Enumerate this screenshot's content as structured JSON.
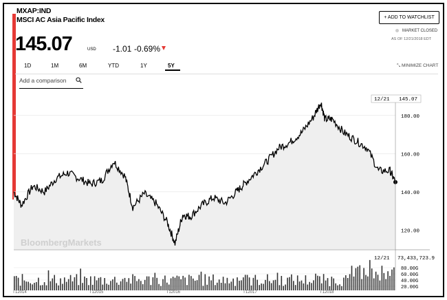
{
  "header": {
    "ticker": "MXAP:IND",
    "name": "MSCI AC Asia Pacific Index",
    "price": "145.07",
    "currency": "USD",
    "change": "-1.01",
    "change_pct": "-0.69%",
    "add_watchlist_label": "+ ADD TO WATCHLIST",
    "market_status": "MARKET CLOSED",
    "as_of": "AS OF 12/21/2018 EDT"
  },
  "tabs": [
    {
      "label": "1D"
    },
    {
      "label": "1M"
    },
    {
      "label": "6M"
    },
    {
      "label": "YTD"
    },
    {
      "label": "1Y"
    },
    {
      "label": "5Y",
      "active": true
    }
  ],
  "minimize_label": "MINIMIZE CHART",
  "comparison_placeholder": "Add a comparison",
  "watermark": "BloombergMarkets",
  "colors": {
    "accent_red": "#e53935",
    "line": "#000000",
    "area_fill": "#efefef"
  },
  "chart_data": {
    "type": "line",
    "price_panel": {
      "ylim": [
        110,
        190
      ],
      "y_ticks": [
        "180.00",
        "160.00",
        "140.00",
        "120.00"
      ],
      "last_label_date": "12/21",
      "last_label_value": "145.07",
      "x": [
        2014.0,
        2014.1,
        2014.25,
        2014.4,
        2014.55,
        2014.7,
        2014.85,
        2015.0,
        2015.15,
        2015.3,
        2015.45,
        2015.55,
        2015.7,
        2015.85,
        2016.0,
        2016.1,
        2016.2,
        2016.3,
        2016.45,
        2016.6,
        2016.75,
        2016.9,
        2017.0,
        2017.15,
        2017.3,
        2017.45,
        2017.6,
        2017.75,
        2017.9,
        2018.0,
        2018.05,
        2018.15,
        2018.3,
        2018.45,
        2018.6,
        2018.75,
        2018.9,
        2018.97
      ],
      "values": [
        140,
        133,
        143,
        140,
        147,
        150,
        147,
        144,
        146,
        156,
        148,
        132,
        139,
        134,
        124,
        113,
        128,
        127,
        133,
        137,
        134,
        140,
        144,
        150,
        156,
        163,
        166,
        171,
        179,
        187,
        178,
        178,
        171,
        167,
        163,
        151,
        151,
        145.07
      ]
    },
    "volume_panel": {
      "y_ticks": [
        "80.00G",
        "60.00G",
        "40.00G",
        "20.00G"
      ],
      "last_label_date": "12/21",
      "last_label_value": "73,433,723.9"
    },
    "x_tick_labels": [
      "12014",
      "12015",
      "12016",
      "12017",
      "12018"
    ],
    "grid": true
  }
}
